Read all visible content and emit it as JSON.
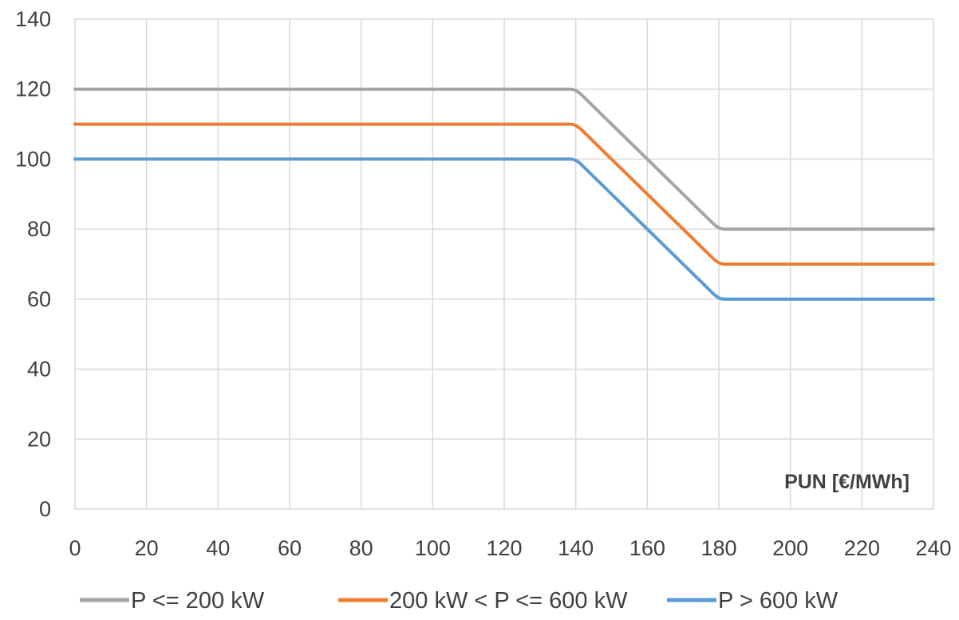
{
  "chart_data": {
    "type": "line",
    "title": "",
    "xlabel": "PUN [€/MWh]",
    "ylabel": "",
    "xlim": [
      0,
      240
    ],
    "ylim": [
      0,
      140
    ],
    "x_ticks": [
      0,
      20,
      40,
      60,
      80,
      100,
      120,
      140,
      160,
      180,
      200,
      220,
      240
    ],
    "y_ticks": [
      0,
      20,
      40,
      60,
      80,
      100,
      120,
      140
    ],
    "grid": true,
    "legend_position": "bottom",
    "series": [
      {
        "name": "P <= 200 kW",
        "color": "#a5a5a5",
        "x": [
          0,
          137,
          140,
          180,
          183,
          240
        ],
        "y": [
          120,
          120,
          120,
          80,
          80,
          80
        ]
      },
      {
        "name": "200 kW < P <= 600 kW",
        "color": "#ed7d31",
        "x": [
          0,
          137,
          140,
          180,
          183,
          240
        ],
        "y": [
          110,
          110,
          110,
          70,
          70,
          70
        ]
      },
      {
        "name": "P > 600 kW",
        "color": "#5b9bd5",
        "x": [
          0,
          137,
          140,
          180,
          183,
          240
        ],
        "y": [
          100,
          100,
          100,
          60,
          60,
          60
        ]
      }
    ]
  }
}
